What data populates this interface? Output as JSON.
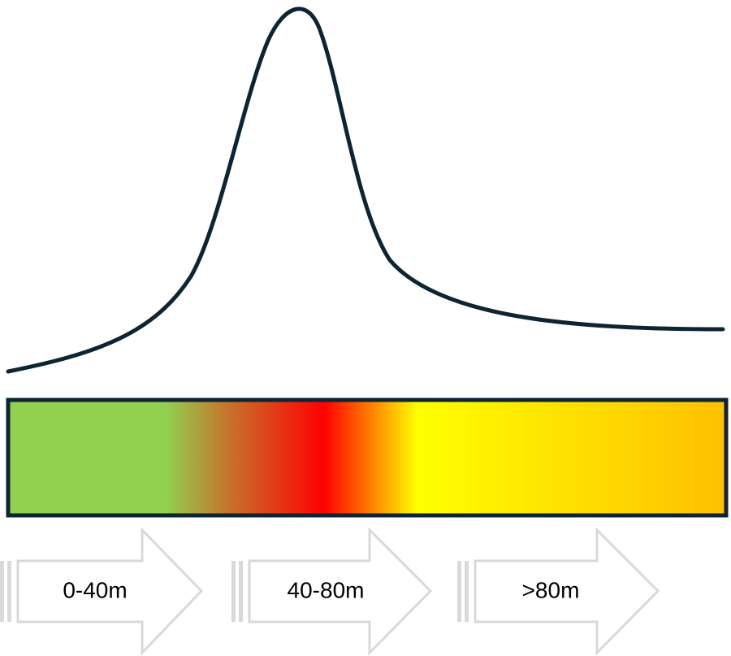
{
  "arrows": [
    {
      "label": "0-40m"
    },
    {
      "label": "40-80m"
    },
    {
      "label": ">80m"
    }
  ]
}
